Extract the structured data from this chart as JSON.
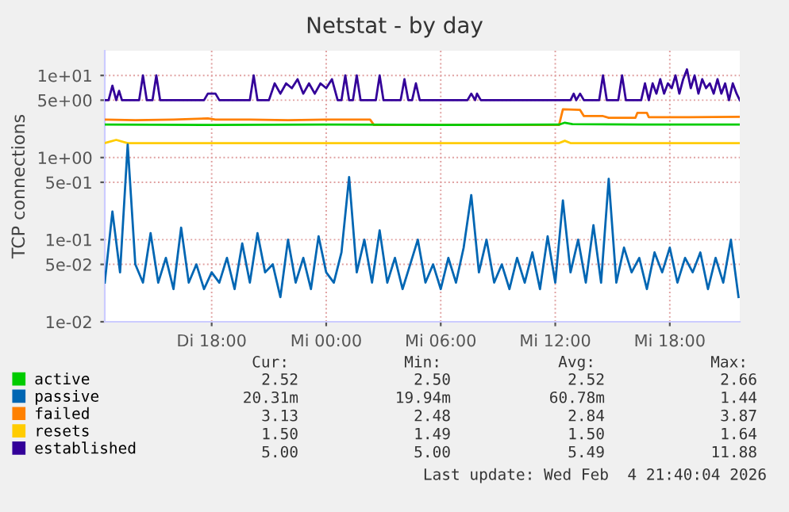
{
  "chart_data": {
    "type": "line",
    "title": "Netstat - by day",
    "ylabel": "TCP connections",
    "log": "y",
    "grid": true,
    "legend": "bottom left",
    "marker": "none",
    "line_style": "solid",
    "xlim": [
      "2026-02-03T12:24",
      "2026-02-04T21:40"
    ],
    "xticks": [
      {
        "value": "2026-02-03T18:00",
        "label": "Di 18:00"
      },
      {
        "value": "2026-02-04T00:00",
        "label": "Mi 00:00"
      },
      {
        "value": "2026-02-04T06:00",
        "label": "Mi 06:00"
      },
      {
        "value": "2026-02-04T12:00",
        "label": "Mi 12:00"
      },
      {
        "value": "2026-02-04T18:00",
        "label": "Mi 18:00"
      }
    ],
    "ylim": [
      0.01,
      20
    ],
    "yticks": [
      {
        "value": 0.01,
        "label": "1e-02"
      },
      {
        "value": 0.05,
        "label": "5e-02"
      },
      {
        "value": 0.1,
        "label": "1e-01"
      },
      {
        "value": 0.5,
        "label": "5e-01"
      },
      {
        "value": 1,
        "label": "1e+00"
      },
      {
        "value": 5,
        "label": "5e+00"
      },
      {
        "value": 10,
        "label": "1e+01"
      }
    ],
    "series": [
      {
        "name": "active",
        "color": "#00cc00",
        "x": [
          "2026-02-03T12:24",
          "2026-02-03T18:00",
          "2026-02-04T00:00",
          "2026-02-04T06:00",
          "2026-02-04T12:12",
          "2026-02-04T12:30",
          "2026-02-04T12:54",
          "2026-02-04T16:30",
          "2026-02-04T21:40"
        ],
        "values": [
          2.52,
          2.5,
          2.52,
          2.5,
          2.52,
          2.66,
          2.55,
          2.52,
          2.52
        ]
      },
      {
        "name": "passive",
        "color": "#0066b3",
        "x": [
          "2026-02-03T12:24",
          "2026-02-03T12:48",
          "2026-02-03T13:12",
          "2026-02-03T13:36",
          "2026-02-03T14:00",
          "2026-02-03T14:24",
          "2026-02-03T14:48",
          "2026-02-03T15:12",
          "2026-02-03T15:36",
          "2026-02-03T16:00",
          "2026-02-03T16:24",
          "2026-02-03T16:48",
          "2026-02-03T17:12",
          "2026-02-03T17:36",
          "2026-02-03T18:00",
          "2026-02-03T18:24",
          "2026-02-03T18:48",
          "2026-02-03T19:12",
          "2026-02-03T19:36",
          "2026-02-03T20:00",
          "2026-02-03T20:24",
          "2026-02-03T20:48",
          "2026-02-03T21:12",
          "2026-02-03T21:36",
          "2026-02-03T22:00",
          "2026-02-03T22:24",
          "2026-02-03T22:48",
          "2026-02-03T23:12",
          "2026-02-03T23:36",
          "2026-02-04T00:00",
          "2026-02-04T00:24",
          "2026-02-04T00:48",
          "2026-02-04T01:12",
          "2026-02-04T01:36",
          "2026-02-04T02:00",
          "2026-02-04T02:24",
          "2026-02-04T02:48",
          "2026-02-04T03:12",
          "2026-02-04T03:36",
          "2026-02-04T04:00",
          "2026-02-04T04:24",
          "2026-02-04T04:48",
          "2026-02-04T05:12",
          "2026-02-04T05:36",
          "2026-02-04T06:00",
          "2026-02-04T06:24",
          "2026-02-04T06:48",
          "2026-02-04T07:12",
          "2026-02-04T07:36",
          "2026-02-04T08:00",
          "2026-02-04T08:24",
          "2026-02-04T08:48",
          "2026-02-04T09:12",
          "2026-02-04T09:36",
          "2026-02-04T10:00",
          "2026-02-04T10:24",
          "2026-02-04T10:48",
          "2026-02-04T11:12",
          "2026-02-04T11:36",
          "2026-02-04T12:00",
          "2026-02-04T12:24",
          "2026-02-04T12:48",
          "2026-02-04T13:12",
          "2026-02-04T13:36",
          "2026-02-04T14:00",
          "2026-02-04T14:24",
          "2026-02-04T14:48",
          "2026-02-04T15:12",
          "2026-02-04T15:36",
          "2026-02-04T16:00",
          "2026-02-04T16:24",
          "2026-02-04T16:48",
          "2026-02-04T17:12",
          "2026-02-04T17:36",
          "2026-02-04T18:00",
          "2026-02-04T18:24",
          "2026-02-04T18:48",
          "2026-02-04T19:12",
          "2026-02-04T19:36",
          "2026-02-04T20:00",
          "2026-02-04T20:24",
          "2026-02-04T20:48",
          "2026-02-04T21:12",
          "2026-02-04T21:36"
        ],
        "values": [
          0.03,
          0.22,
          0.04,
          1.44,
          0.05,
          0.03,
          0.12,
          0.03,
          0.06,
          0.025,
          0.14,
          0.03,
          0.05,
          0.025,
          0.04,
          0.03,
          0.06,
          0.025,
          0.09,
          0.03,
          0.12,
          0.04,
          0.05,
          0.02,
          0.1,
          0.03,
          0.06,
          0.025,
          0.11,
          0.04,
          0.03,
          0.07,
          0.58,
          0.04,
          0.1,
          0.03,
          0.13,
          0.03,
          0.06,
          0.025,
          0.05,
          0.1,
          0.03,
          0.05,
          0.025,
          0.06,
          0.03,
          0.08,
          0.35,
          0.04,
          0.1,
          0.03,
          0.05,
          0.025,
          0.06,
          0.03,
          0.07,
          0.025,
          0.11,
          0.03,
          0.3,
          0.04,
          0.1,
          0.03,
          0.15,
          0.03,
          0.55,
          0.03,
          0.08,
          0.04,
          0.06,
          0.025,
          0.07,
          0.04,
          0.08,
          0.03,
          0.06,
          0.04,
          0.07,
          0.025,
          0.06,
          0.03,
          0.1,
          0.02
        ]
      },
      {
        "name": "failed",
        "color": "#ff8000",
        "x": [
          "2026-02-03T12:24",
          "2026-02-03T14:00",
          "2026-02-03T16:00",
          "2026-02-03T17:48",
          "2026-02-03T18:12",
          "2026-02-03T20:00",
          "2026-02-03T22:00",
          "2026-02-04T00:00",
          "2026-02-04T02:18",
          "2026-02-04T02:30",
          "2026-02-04T03:12",
          "2026-02-04T06:00",
          "2026-02-04T09:00",
          "2026-02-04T12:12",
          "2026-02-04T12:24",
          "2026-02-04T13:18",
          "2026-02-04T13:30",
          "2026-02-04T14:30",
          "2026-02-04T14:48",
          "2026-02-04T16:12",
          "2026-02-04T16:18",
          "2026-02-04T16:48",
          "2026-02-04T16:54",
          "2026-02-04T19:00",
          "2026-02-04T21:40"
        ],
        "values": [
          2.9,
          2.85,
          2.9,
          3.0,
          2.9,
          2.9,
          2.85,
          2.9,
          2.9,
          2.5,
          2.5,
          2.5,
          2.5,
          2.5,
          3.87,
          3.8,
          3.2,
          3.2,
          3.05,
          3.05,
          3.5,
          3.5,
          3.1,
          3.1,
          3.13
        ]
      },
      {
        "name": "resets",
        "color": "#ffcc00",
        "x": [
          "2026-02-03T12:24",
          "2026-02-03T13:00",
          "2026-02-03T13:36",
          "2026-02-03T18:00",
          "2026-02-04T00:00",
          "2026-02-04T06:00",
          "2026-02-04T12:12",
          "2026-02-04T12:30",
          "2026-02-04T12:48",
          "2026-02-04T21:40"
        ],
        "values": [
          1.5,
          1.64,
          1.5,
          1.5,
          1.5,
          1.5,
          1.5,
          1.6,
          1.5,
          1.5
        ]
      },
      {
        "name": "established",
        "color": "#330099",
        "x": [
          "2026-02-03T12:24",
          "2026-02-03T12:36",
          "2026-02-03T12:48",
          "2026-02-03T13:00",
          "2026-02-03T13:09",
          "2026-02-03T13:18",
          "2026-02-03T14:12",
          "2026-02-03T14:24",
          "2026-02-03T14:36",
          "2026-02-03T14:54",
          "2026-02-03T15:06",
          "2026-02-03T15:18",
          "2026-02-03T17:36",
          "2026-02-03T17:48",
          "2026-02-03T18:12",
          "2026-02-03T18:24",
          "2026-02-03T20:00",
          "2026-02-03T20:12",
          "2026-02-03T20:24",
          "2026-02-03T21:00",
          "2026-02-03T21:18",
          "2026-02-03T21:36",
          "2026-02-03T21:54",
          "2026-02-03T22:12",
          "2026-02-03T22:30",
          "2026-02-03T22:48",
          "2026-02-03T23:06",
          "2026-02-03T23:24",
          "2026-02-03T23:42",
          "2026-02-04T00:00",
          "2026-02-04T00:18",
          "2026-02-04T00:36",
          "2026-02-04T00:48",
          "2026-02-04T01:00",
          "2026-02-04T01:12",
          "2026-02-04T01:24",
          "2026-02-04T01:36",
          "2026-02-04T01:48",
          "2026-02-04T02:36",
          "2026-02-04T02:48",
          "2026-02-04T03:00",
          "2026-02-04T03:54",
          "2026-02-04T04:06",
          "2026-02-04T04:18",
          "2026-02-04T04:30",
          "2026-02-04T04:42",
          "2026-02-04T04:54",
          "2026-02-04T07:24",
          "2026-02-04T07:36",
          "2026-02-04T07:48",
          "2026-02-04T07:54",
          "2026-02-04T08:06",
          "2026-02-04T12:48",
          "2026-02-04T12:58",
          "2026-02-04T13:06",
          "2026-02-04T13:18",
          "2026-02-04T13:30",
          "2026-02-04T14:18",
          "2026-02-04T14:30",
          "2026-02-04T14:42",
          "2026-02-04T15:18",
          "2026-02-04T15:30",
          "2026-02-04T15:42",
          "2026-02-04T16:30",
          "2026-02-04T16:42",
          "2026-02-04T16:54",
          "2026-02-04T17:06",
          "2026-02-04T17:18",
          "2026-02-04T17:30",
          "2026-02-04T17:42",
          "2026-02-04T17:54",
          "2026-02-04T18:06",
          "2026-02-04T18:18",
          "2026-02-04T18:30",
          "2026-02-04T18:42",
          "2026-02-04T18:54",
          "2026-02-04T19:06",
          "2026-02-04T19:18",
          "2026-02-04T19:30",
          "2026-02-04T19:42",
          "2026-02-04T19:54",
          "2026-02-04T20:06",
          "2026-02-04T20:18",
          "2026-02-04T20:30",
          "2026-02-04T20:42",
          "2026-02-04T20:54",
          "2026-02-04T21:06",
          "2026-02-04T21:18",
          "2026-02-04T21:30",
          "2026-02-04T21:40"
        ],
        "values": [
          5,
          5,
          7.5,
          5,
          6.5,
          5,
          5,
          10,
          5,
          5,
          10,
          5,
          5,
          6,
          6,
          5,
          5,
          10,
          5,
          5,
          8,
          6,
          8,
          7,
          9,
          6,
          8,
          6,
          8,
          7,
          9,
          5,
          5,
          10,
          5,
          5,
          10,
          5,
          5,
          10,
          5,
          5,
          9,
          5,
          5,
          8,
          5,
          5,
          6,
          5,
          6,
          5,
          5,
          6,
          5,
          6,
          5,
          5,
          10,
          5,
          5,
          10,
          5,
          5,
          8,
          5,
          8,
          6,
          9,
          6,
          8,
          7,
          10,
          6,
          9,
          11.88,
          7,
          10,
          6,
          9,
          7,
          8,
          6,
          9,
          6,
          8,
          5,
          8,
          6,
          5
        ]
      }
    ],
    "annotations": [
      "Cur:",
      "Min:",
      "Avg:",
      "Max:",
      "2.52",
      "2.50",
      "2.52",
      "2.66",
      "20.31m",
      "19.94m",
      "60.78m",
      "1.44",
      "3.13",
      "2.48",
      "2.84",
      "3.87",
      "1.50",
      "1.49",
      "1.50",
      "1.64",
      "5.00",
      "5.00",
      "5.49",
      "11.88",
      "Last update: Wed Feb  4 21:40:04 2026"
    ]
  }
}
